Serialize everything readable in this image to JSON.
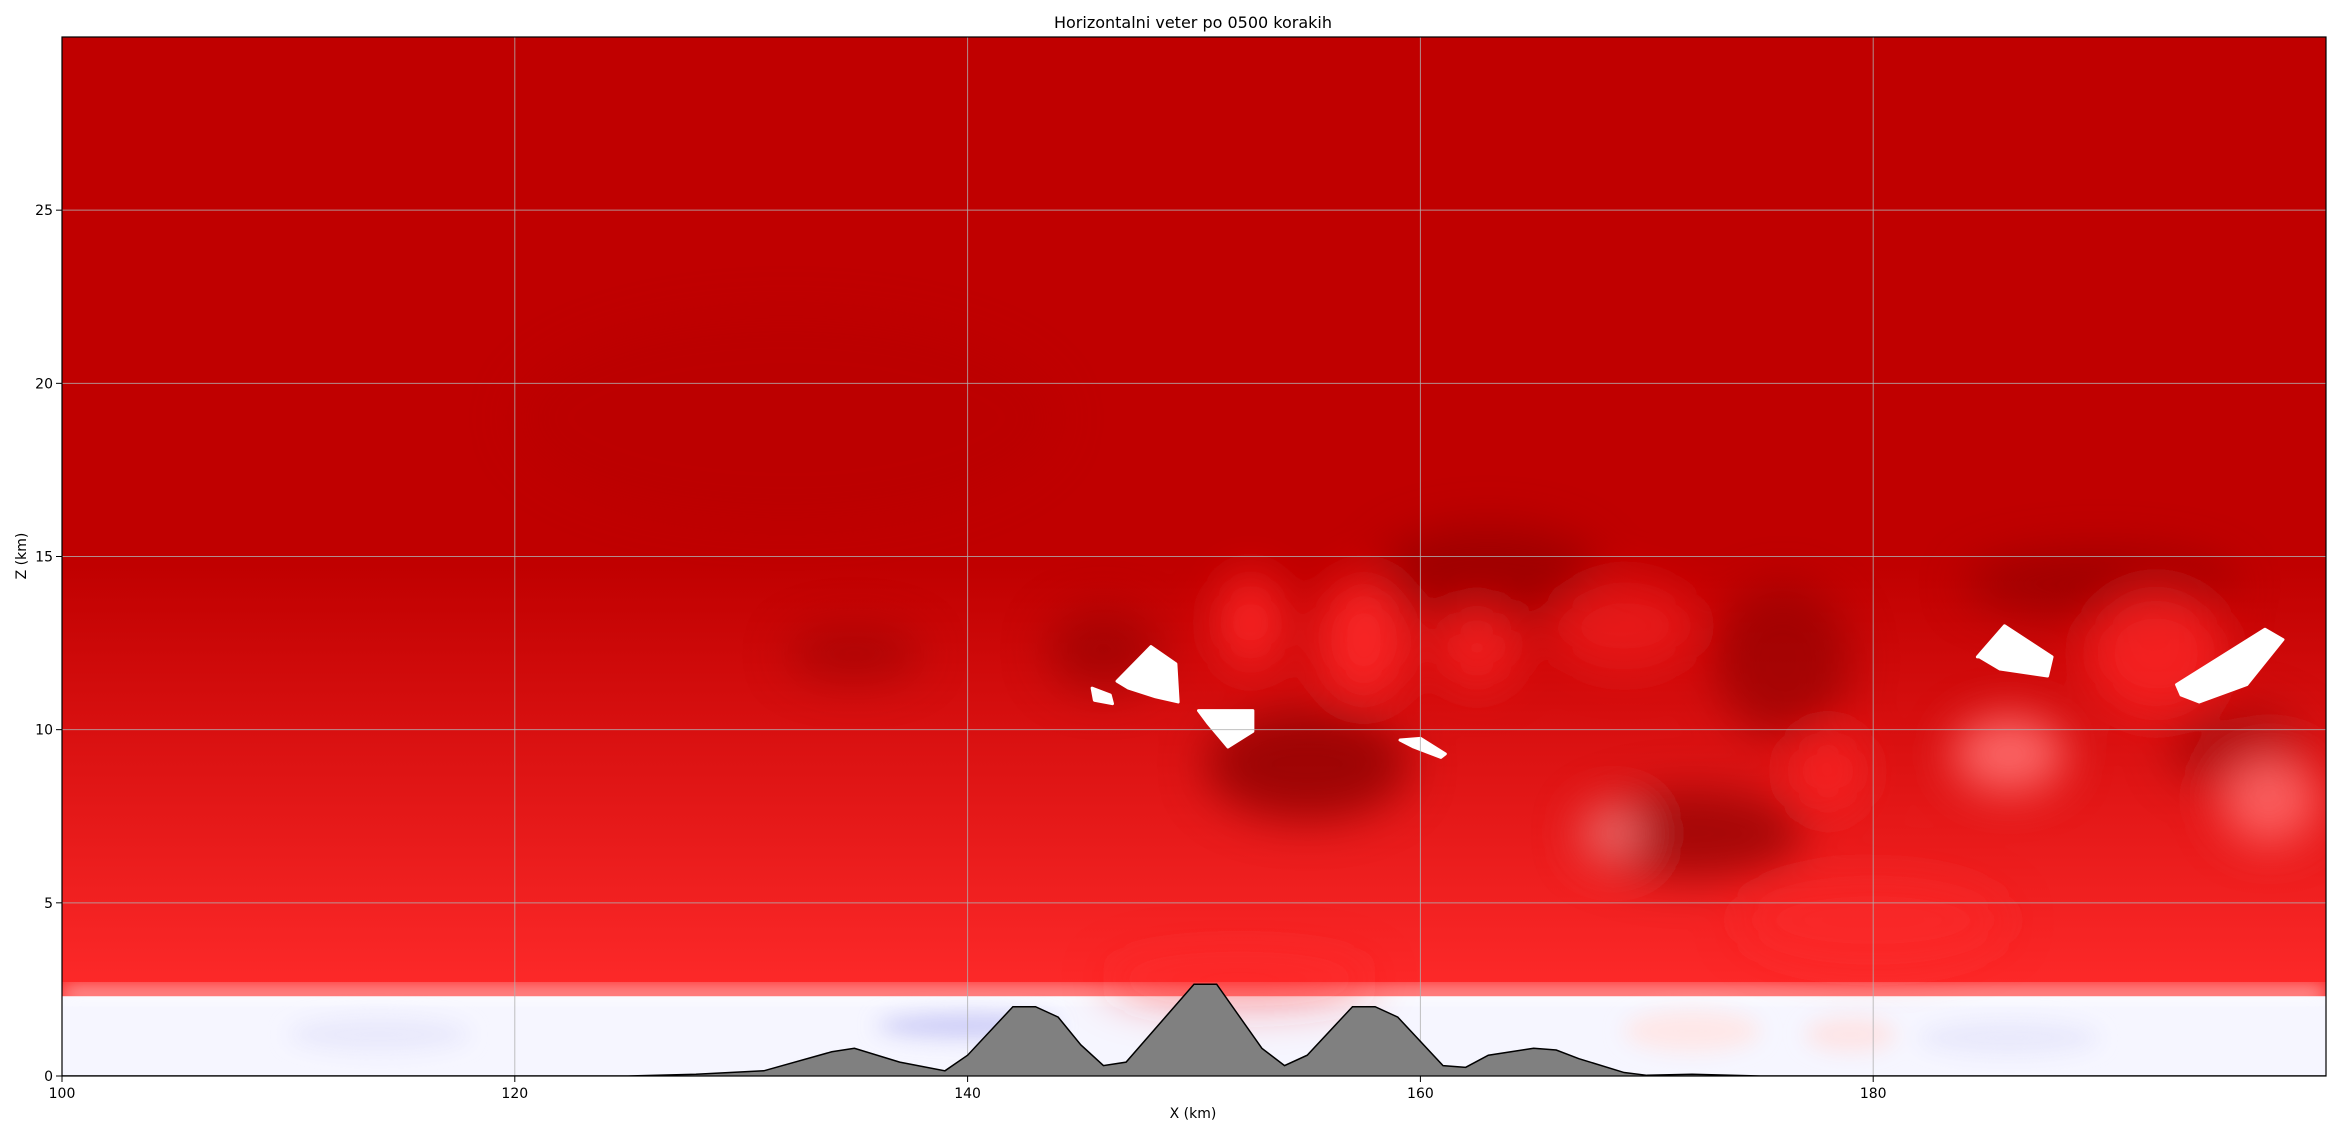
{
  "chart_data": {
    "type": "heatmap",
    "title": "Horizontalni veter po 0500 korakih",
    "xlabel": "X (km)",
    "ylabel": "Z (km)",
    "xlim": [
      100,
      200
    ],
    "ylim": [
      0,
      30
    ],
    "x_ticks": [
      100,
      120,
      140,
      160,
      180
    ],
    "y_ticks": [
      0,
      5,
      10,
      15,
      20,
      25
    ],
    "grid": true,
    "colors": {
      "strong": "#c00000",
      "dark": "#8a0000",
      "bright": "#ff2a2a",
      "weak": "#f6f6ff",
      "negative": "#c8c8f6",
      "terrain": "#808080",
      "terrain_edge": "#000000"
    },
    "wind_layers": [
      {
        "z_from": 0,
        "z_to": 2.3,
        "level": "near zero"
      },
      {
        "z_from": 2.3,
        "z_to": 30,
        "level": "strong"
      }
    ],
    "terrain": {
      "x": [
        100,
        125,
        128,
        131,
        134,
        135,
        137,
        139,
        140,
        142,
        143,
        144,
        145,
        146,
        147,
        150,
        151,
        153,
        154,
        155,
        157,
        158,
        159,
        161,
        162,
        163,
        165,
        166,
        167,
        169,
        170,
        172,
        175,
        200
      ],
      "z": [
        0,
        0,
        0.05,
        0.15,
        0.7,
        0.8,
        0.4,
        0.15,
        0.6,
        2.0,
        2.0,
        1.7,
        0.9,
        0.3,
        0.4,
        2.65,
        2.65,
        0.8,
        0.3,
        0.6,
        2.0,
        2.0,
        1.7,
        0.3,
        0.25,
        0.6,
        0.8,
        0.75,
        0.5,
        0.1,
        0.02,
        0.05,
        0,
        0
      ]
    },
    "blank_regions": [
      {
        "x": [
          146.6,
          148.1,
          149.2,
          149.3,
          148.3,
          147.1
        ],
        "z": [
          11.4,
          12.4,
          11.9,
          10.8,
          10.95,
          11.2
        ]
      },
      {
        "x": [
          145.5,
          146.3,
          146.4,
          145.6
        ],
        "z": [
          11.2,
          11.0,
          10.75,
          10.85
        ]
      },
      {
        "x": [
          150.2,
          152.6,
          152.6,
          151.5,
          150.6
        ],
        "z": [
          10.55,
          10.55,
          9.95,
          9.5,
          10.2
        ]
      },
      {
        "x": [
          159.1,
          160.0,
          161.1,
          160.9,
          159.7
        ],
        "z": [
          9.7,
          9.75,
          9.3,
          9.2,
          9.5
        ]
      },
      {
        "x": [
          184.6,
          185.8,
          187.9,
          187.7,
          185.6,
          184.7
        ],
        "z": [
          12.1,
          13.0,
          12.1,
          11.55,
          11.75,
          12.1
        ]
      },
      {
        "x": [
          193.4,
          197.3,
          198.1,
          196.5,
          194.4,
          193.6
        ],
        "z": [
          11.3,
          12.9,
          12.6,
          11.3,
          10.8,
          11.0
        ]
      }
    ]
  }
}
